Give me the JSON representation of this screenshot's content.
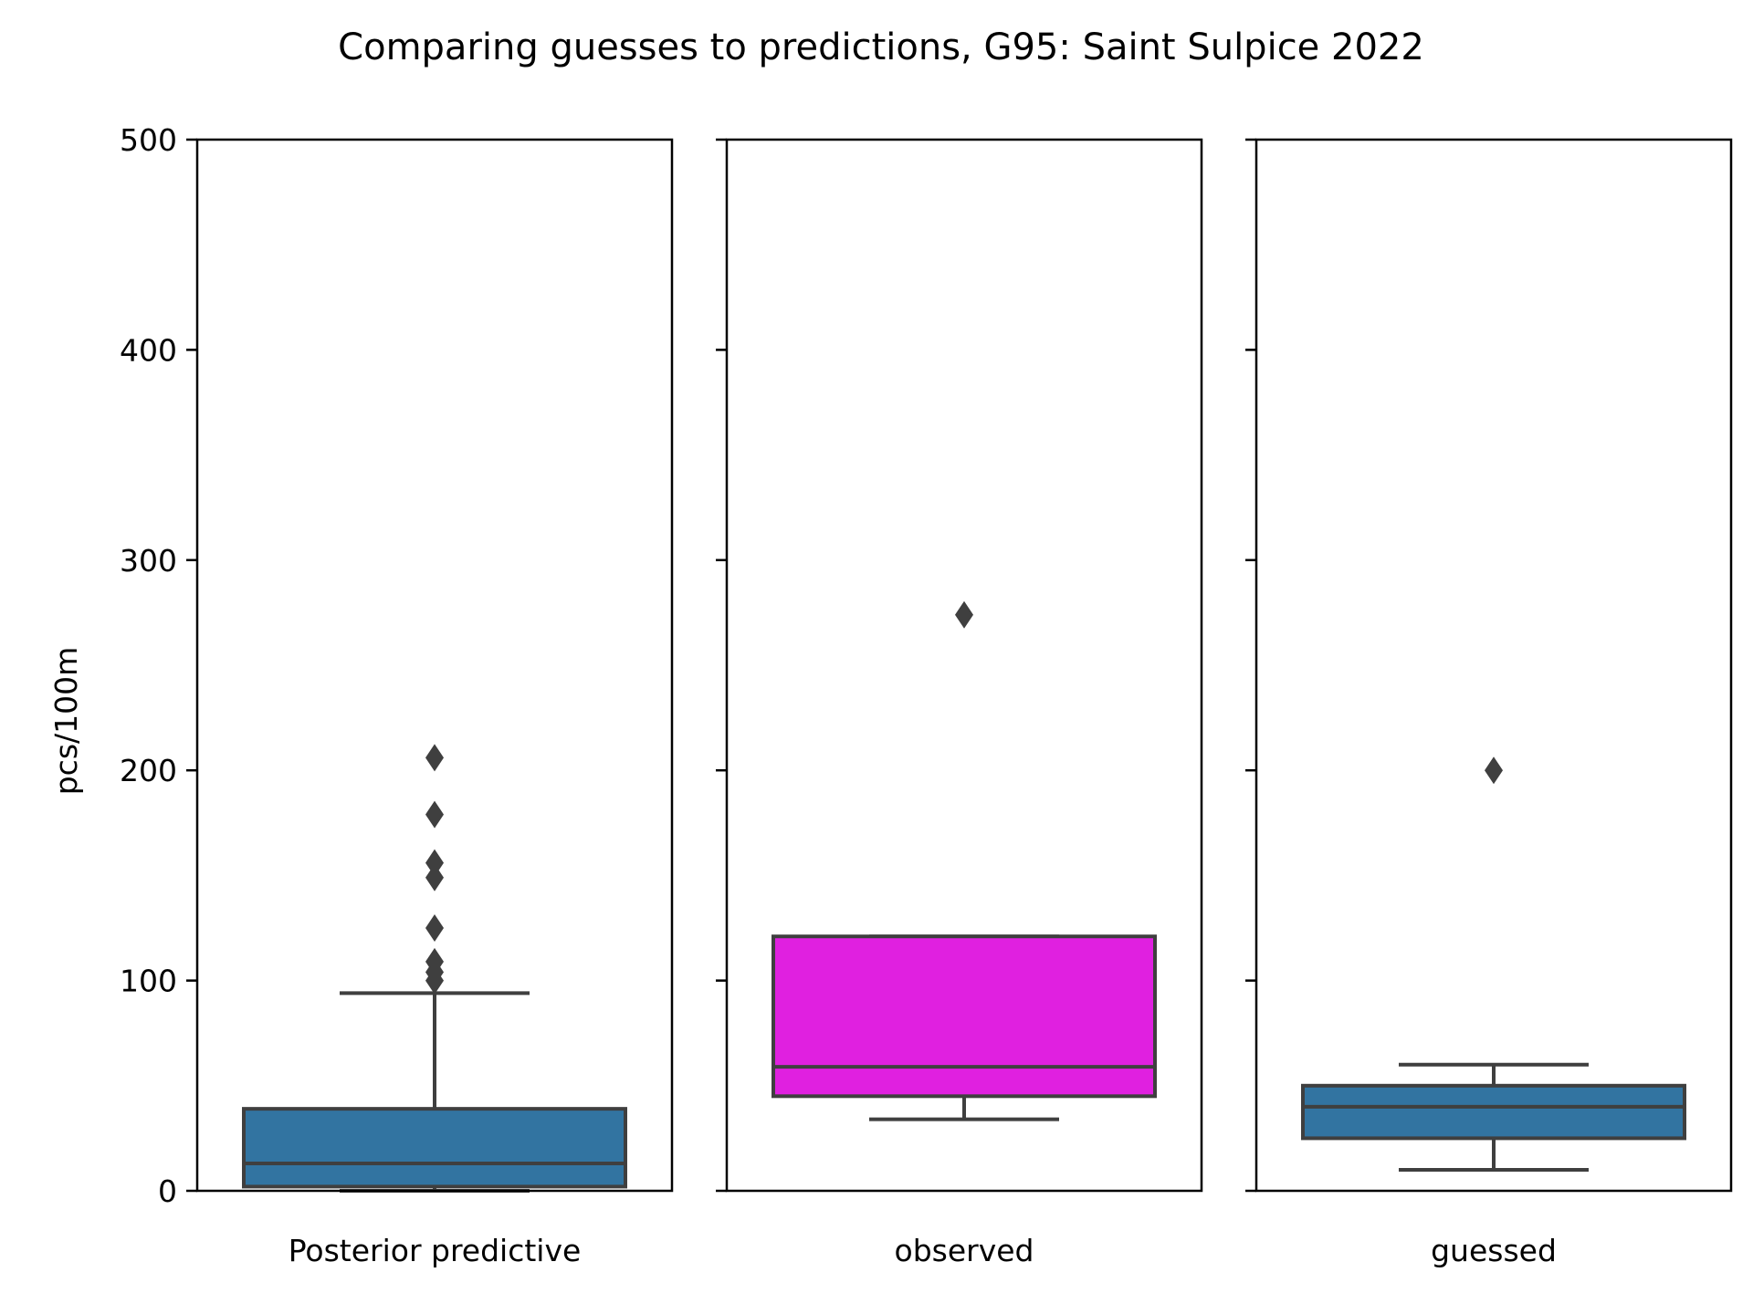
{
  "chart_data": {
    "type": "box",
    "title": "Comparing guesses to predictions, G95: Saint Sulpice 2022",
    "ylabel": "pcs/100m",
    "ylim": [
      0,
      500
    ],
    "yticks": [
      "0",
      "100",
      "200",
      "300",
      "400",
      "500"
    ],
    "shared_y": true,
    "grid": false,
    "panels": [
      {
        "label": "Posterior predictive",
        "color": "#3274a1",
        "q1": 2,
        "median": 13,
        "q3": 39,
        "whisker_low": 0,
        "whisker_high": 94,
        "outliers": [
          100,
          104,
          109,
          125,
          149,
          156,
          179,
          206
        ]
      },
      {
        "label": "observed",
        "color": "#e020e0",
        "q1": 45,
        "median": 59,
        "q3": 121,
        "whisker_low": 34,
        "whisker_high": 121,
        "outliers": [
          274
        ]
      },
      {
        "label": "guessed",
        "color": "#3274a1",
        "q1": 25,
        "median": 40,
        "q3": 50,
        "whisker_low": 10,
        "whisker_high": 60,
        "outliers": [
          200
        ]
      }
    ]
  }
}
